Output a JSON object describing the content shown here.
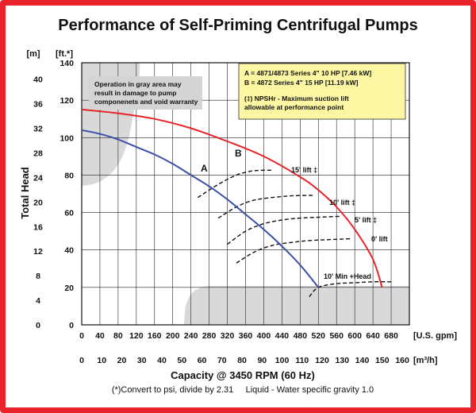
{
  "chart_data": {
    "type": "line",
    "title": "Performance of Self-Priming Centrifugal Pumps",
    "ylabel": "Total Head",
    "y_unit_left": "[m]",
    "y_unit_right": "[ft.*]",
    "x_unit_top": "[U.S. gpm]",
    "x_unit_bottom": "[m³/h]",
    "xlabel": "Capacity @ 3450 RPM (60 Hz)",
    "footnote": "(*)Convert to psi, divide by 2.31     Liquid - Water specific gravity 1.0",
    "xlim_gpm": [
      0,
      720
    ],
    "ylim_ft": [
      0,
      140
    ],
    "ft_ticks": [
      "0",
      "20",
      "40",
      "60",
      "80",
      "100",
      "120",
      "140"
    ],
    "m_ticks": [
      "0",
      "4",
      "8",
      "12",
      "16",
      "20",
      "24",
      "28",
      "32",
      "36",
      "40"
    ],
    "gpm_ticks": [
      "0",
      "40",
      "80",
      "120",
      "160",
      "200",
      "240",
      "280",
      "320",
      "360",
      "400",
      "440",
      "480",
      "520",
      "560",
      "600",
      "640",
      "680"
    ],
    "m3h_ticks": [
      "0",
      "10",
      "20",
      "30",
      "40",
      "50",
      "60",
      "70",
      "80",
      "90",
      "100",
      "110",
      "120",
      "130",
      "140",
      "150",
      "160"
    ],
    "series": [
      {
        "name": "A",
        "color": "#3a4fa8",
        "x": [
          0,
          40,
          80,
          120,
          160,
          200,
          240,
          280,
          320,
          360,
          400,
          440,
          480,
          520
        ],
        "y": [
          104,
          102,
          99,
          95,
          91,
          86,
          80,
          74,
          67,
          59,
          51,
          42,
          32,
          20
        ]
      },
      {
        "name": "B",
        "color": "#e8232a",
        "x": [
          0,
          80,
          160,
          240,
          320,
          400,
          480,
          520,
          560,
          600,
          640,
          660
        ],
        "y": [
          115,
          113,
          110,
          105,
          98,
          90,
          79,
          72,
          63,
          51,
          35,
          20
        ]
      }
    ],
    "lift_curves": [
      {
        "label": "15' lift ‡",
        "x": [
          255,
          300,
          340,
          370,
          390,
          410,
          420
        ],
        "y": [
          68,
          75,
          80,
          82,
          82.5,
          82.6,
          82.6
        ]
      },
      {
        "label": "10' lift ‡",
        "x": [
          300,
          340,
          370,
          400,
          440,
          470,
          510
        ],
        "y": [
          57,
          63,
          66,
          67.5,
          68.5,
          69,
          69.2
        ]
      },
      {
        "label": "5' lift ‡",
        "x": [
          320,
          360,
          400,
          440,
          480,
          520,
          570
        ],
        "y": [
          43,
          50,
          54,
          56,
          57,
          57.5,
          58
        ]
      },
      {
        "label": "0' lift",
        "x": [
          340,
          380,
          420,
          460,
          500,
          540,
          590
        ],
        "y": [
          33,
          39,
          42.5,
          44,
          45,
          45.5,
          46
        ]
      },
      {
        "label": "10' Min +Head",
        "x": [
          500,
          520,
          560,
          600,
          640,
          680
        ],
        "y": [
          15,
          20,
          22,
          22.5,
          23,
          23
        ]
      }
    ],
    "curve_labels": {
      "A": "A",
      "B": "B"
    },
    "legend_box": {
      "line1": "A = 4871/4873 Series 4\" 10 HP [7.46 kW]",
      "line2": "B = 4872 Series 4\" 15 HP [11.19 kW]",
      "line3": "(‡) NPSHr - Maximum suction lift",
      "line4": "allowable at performance point"
    },
    "gray_note": {
      "line1": "Operation in gray area may",
      "line2": "result in damage to pump",
      "line3": "componenets and void warranty"
    },
    "grid": true,
    "colors": {
      "frame": "#e8232a",
      "gray_area": "#d9d9d9",
      "legend_bg": "#fdf6a3",
      "grid": "#222222"
    }
  }
}
